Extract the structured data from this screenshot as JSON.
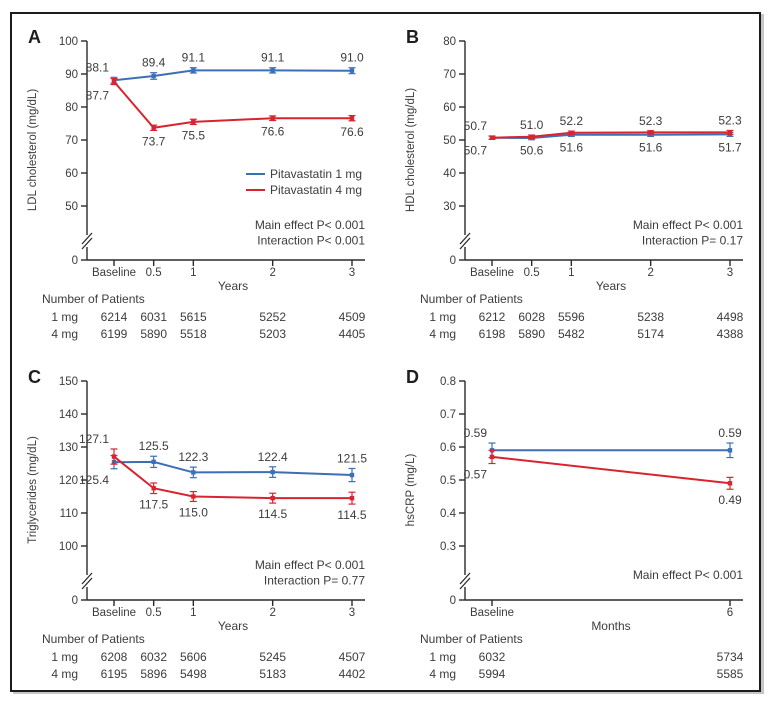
{
  "figure": {
    "background": "#ffffff",
    "border_color": "#1b1b1b",
    "text_color": "#3c3c3c",
    "axis_color": "#2a2a2a",
    "patients_header": "Number of Patients",
    "legend": [
      {
        "label": "Pitavastatin 1 mg",
        "color": "#3d6fb5"
      },
      {
        "label": "Pitavastatin 4 mg",
        "color": "#d8242f"
      }
    ]
  },
  "chart_data": [
    {
      "panel": "A",
      "type": "line",
      "ylabel": "LDL cholesterol (mg/dL)",
      "xlabel": "Years",
      "yticks": [
        100,
        90,
        80,
        70,
        60,
        50
      ],
      "ylim": [
        50,
        100
      ],
      "y_axis_break": true,
      "y_origin_label": "0",
      "x": [
        0,
        0.5,
        1,
        2,
        3
      ],
      "xmax": 3,
      "xticklabels": [
        "Baseline",
        "0.5",
        "1",
        "2",
        "3"
      ],
      "series": [
        {
          "name": "Pitavastatin 1 mg",
          "color": "#3d6fb5",
          "values": [
            88.1,
            89.4,
            91.1,
            91.1,
            91.0
          ],
          "labels": [
            "88.1",
            "89.4",
            "91.1",
            "91.1",
            "91.0"
          ],
          "err": [
            0.9,
            1.0,
            0.8,
            0.8,
            0.9
          ],
          "label_side": [
            "above",
            "above",
            "above",
            "above",
            "above"
          ]
        },
        {
          "name": "Pitavastatin 4 mg",
          "color": "#d8242f",
          "values": [
            87.7,
            73.7,
            75.5,
            76.6,
            76.6
          ],
          "labels": [
            "87.7",
            "73.7",
            "75.5",
            "76.6",
            "76.6"
          ],
          "err": [
            0.9,
            0.8,
            0.8,
            0.7,
            0.8
          ],
          "label_side": [
            "below",
            "below",
            "below",
            "below",
            "below"
          ]
        }
      ],
      "stats": [
        "Main effect P< 0.001",
        "Interaction  P< 0.001"
      ],
      "show_legend": true,
      "patients": [
        {
          "name": "1 mg",
          "values": [
            "6214",
            "6031",
            "5615",
            "5252",
            "4509"
          ]
        },
        {
          "name": "4 mg",
          "values": [
            "6199",
            "5890",
            "5518",
            "5203",
            "4405"
          ]
        }
      ]
    },
    {
      "panel": "B",
      "type": "line",
      "ylabel": "HDL cholesterol (mg/dL)",
      "xlabel": "Years",
      "yticks": [
        80,
        70,
        60,
        50,
        40,
        30
      ],
      "ylim": [
        30,
        80
      ],
      "y_axis_break": true,
      "y_origin_label": "0",
      "x": [
        0,
        0.5,
        1,
        2,
        3
      ],
      "xmax": 3,
      "xticklabels": [
        "Baseline",
        "0.5",
        "1",
        "2",
        "3"
      ],
      "series": [
        {
          "name": "Pitavastatin 1 mg",
          "color": "#3d6fb5",
          "values": [
            50.7,
            50.6,
            51.6,
            51.6,
            51.7
          ],
          "labels": [
            "50.7",
            "50.6",
            "51.6",
            "51.6",
            "51.7"
          ],
          "err": [
            0.5,
            0.5,
            0.5,
            0.5,
            0.6
          ],
          "label_side": [
            "below",
            "below",
            "below",
            "below",
            "below"
          ]
        },
        {
          "name": "Pitavastatin 4 mg",
          "color": "#d8242f",
          "values": [
            50.7,
            51.0,
            52.2,
            52.3,
            52.3
          ],
          "labels": [
            "50.7",
            "51.0",
            "52.2",
            "52.3",
            "52.3"
          ],
          "err": [
            0.5,
            0.5,
            0.5,
            0.5,
            0.6
          ],
          "label_side": [
            "above",
            "above",
            "above",
            "above",
            "above"
          ]
        }
      ],
      "stats": [
        "Main effect P< 0.001",
        "Interaction  P= 0.17"
      ],
      "show_legend": false,
      "patients": [
        {
          "name": "1 mg",
          "values": [
            "6212",
            "6028",
            "5596",
            "5238",
            "4498"
          ]
        },
        {
          "name": "4 mg",
          "values": [
            "6198",
            "5890",
            "5482",
            "5174",
            "4388"
          ]
        }
      ]
    },
    {
      "panel": "C",
      "type": "line",
      "ylabel": "Triglycerides (mg/dL)",
      "xlabel": "Years",
      "yticks": [
        150,
        140,
        130,
        120,
        110,
        100
      ],
      "ylim": [
        100,
        150
      ],
      "y_axis_break": true,
      "y_origin_label": "0",
      "x": [
        0,
        0.5,
        1,
        2,
        3
      ],
      "xmax": 3,
      "xticklabels": [
        "Baseline",
        "0.5",
        "1",
        "2",
        "3"
      ],
      "series": [
        {
          "name": "Pitavastatin 1 mg",
          "color": "#3d6fb5",
          "values": [
            125.4,
            125.5,
            122.3,
            122.4,
            121.5
          ],
          "labels": [
            "125.4",
            "125.5",
            "122.3",
            "122.4",
            "121.5"
          ],
          "err": [
            2.0,
            1.7,
            1.6,
            1.6,
            2.0
          ],
          "label_side": [
            "below",
            "above",
            "above",
            "above",
            "above"
          ]
        },
        {
          "name": "Pitavastatin 4 mg",
          "color": "#d8242f",
          "values": [
            127.1,
            117.5,
            115.0,
            114.5,
            114.5
          ],
          "labels": [
            "127.1",
            "117.5",
            "115.0",
            "114.5",
            "114.5"
          ],
          "err": [
            2.3,
            1.6,
            1.5,
            1.5,
            1.8
          ],
          "label_side": [
            "above",
            "below",
            "below",
            "below",
            "below"
          ]
        }
      ],
      "stats": [
        "Main effect P< 0.001",
        "Interaction  P= 0.77"
      ],
      "show_legend": false,
      "patients": [
        {
          "name": "1 mg",
          "values": [
            "6208",
            "6032",
            "5606",
            "5245",
            "4507"
          ]
        },
        {
          "name": "4 mg",
          "values": [
            "6195",
            "5896",
            "5498",
            "5183",
            "4402"
          ]
        }
      ]
    },
    {
      "panel": "D",
      "type": "line",
      "ylabel": "hsCRP (mg/L)",
      "xlabel": "Months",
      "yticks": [
        0.8,
        0.7,
        0.6,
        0.5,
        0.4,
        0.3
      ],
      "ylim": [
        0.3,
        0.8
      ],
      "y_axis_break": true,
      "y_origin_label": "0",
      "x": [
        0,
        6
      ],
      "xmax": 6,
      "xticklabels": [
        "Baseline",
        "6"
      ],
      "series": [
        {
          "name": "Pitavastatin 1 mg",
          "color": "#3d6fb5",
          "values": [
            0.59,
            0.59
          ],
          "labels": [
            "0.59",
            "0.59"
          ],
          "err": [
            0.022,
            0.022
          ],
          "label_side": [
            "above",
            "above"
          ]
        },
        {
          "name": "Pitavastatin 4 mg",
          "color": "#d8242f",
          "values": [
            0.57,
            0.49
          ],
          "labels": [
            "0.57",
            "0.49"
          ],
          "err": [
            0.02,
            0.018
          ],
          "label_side": [
            "below",
            "below"
          ]
        }
      ],
      "stats": [
        "Main effect P< 0.001"
      ],
      "show_legend": false,
      "patients": [
        {
          "name": "1 mg",
          "values": [
            "6032",
            "5734"
          ]
        },
        {
          "name": "4 mg",
          "values": [
            "5994",
            "5585"
          ]
        }
      ]
    }
  ]
}
